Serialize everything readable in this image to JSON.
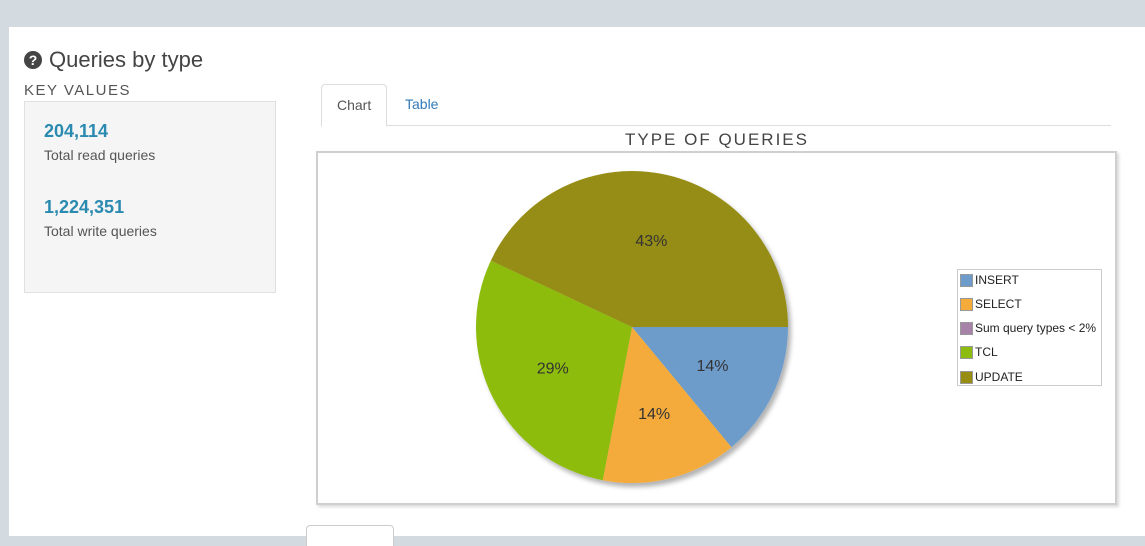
{
  "header": {
    "title": "Queries by type",
    "icon": "question-circle-icon"
  },
  "key_values": {
    "heading": "KEY VALUES",
    "items": [
      {
        "value": "204,114",
        "label": "Total read queries"
      },
      {
        "value": "1,224,351",
        "label": "Total write queries"
      }
    ]
  },
  "tabs": [
    {
      "label": "Chart",
      "active": true
    },
    {
      "label": "Table",
      "active": false
    }
  ],
  "colors": {
    "accent_value": "#2a8ab0",
    "link": "#337ab7"
  },
  "chart_data": {
    "type": "pie",
    "title": "TYPE OF QUERIES",
    "legend_position": "right",
    "series": [
      {
        "name": "INSERT",
        "percent": 14,
        "label": "14%",
        "color": "#6d9ccb"
      },
      {
        "name": "SELECT",
        "percent": 14,
        "label": "14%",
        "color": "#f4ab3a"
      },
      {
        "name": "Sum query types < 2%",
        "percent": 0,
        "label": "",
        "color": "#a782a9"
      },
      {
        "name": "TCL",
        "percent": 29,
        "label": "29%",
        "color": "#8dbc10"
      },
      {
        "name": "UPDATE",
        "percent": 43,
        "label": "43%",
        "color": "#968d12"
      }
    ]
  }
}
